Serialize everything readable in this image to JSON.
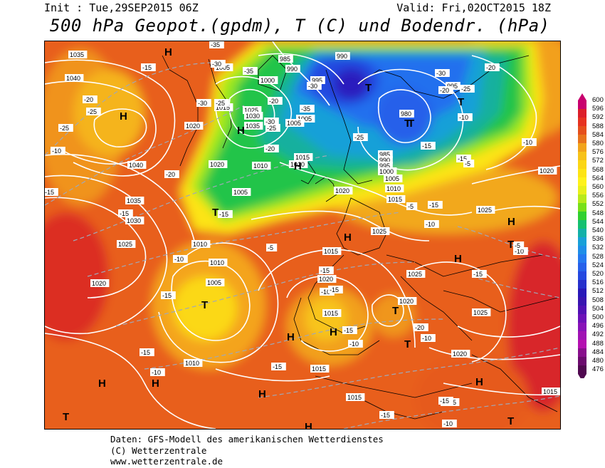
{
  "header": {
    "init": "Init : Tue,29SEP2015 06Z",
    "valid": "Valid: Fri,02OCT2015 18Z",
    "title": "500 hPa Geopot.(gpdm), T (C) und Bodendr. (hPa)"
  },
  "legend": {
    "values": [
      "600",
      "596",
      "592",
      "588",
      "584",
      "580",
      "576",
      "572",
      "568",
      "564",
      "560",
      "556",
      "552",
      "548",
      "544",
      "540",
      "536",
      "532",
      "528",
      "524",
      "520",
      "516",
      "512",
      "508",
      "504",
      "500",
      "496",
      "492",
      "488",
      "484",
      "480",
      "476"
    ],
    "colors": [
      "#c8006e",
      "#dc1e2a",
      "#e63220",
      "#e54f1c",
      "#e8731c",
      "#f2a31a",
      "#f7c218",
      "#fbd614",
      "#fde414",
      "#fef21a",
      "#e8f01a",
      "#b8ea1a",
      "#78e018",
      "#30d02e",
      "#14c070",
      "#12b0a8",
      "#18a0d8",
      "#1e8ee8",
      "#2478f0",
      "#2660ea",
      "#2448e0",
      "#2630cc",
      "#2818b8",
      "#3814b0",
      "#5010b4",
      "#6c10b8",
      "#8812b8",
      "#a012b4",
      "#b410b0",
      "#880e8c",
      "#6c0a6e",
      "#500850"
    ]
  },
  "map": {
    "pressure_labels": [
      "1035",
      "1040",
      "1005",
      "985",
      "990",
      "990",
      "995",
      "1000",
      "1005",
      "995",
      "980",
      "1025",
      "1030",
      "1035",
      "1015",
      "1005",
      "1020",
      "1010",
      "1015",
      "1020",
      "1010",
      "1005",
      "985",
      "990",
      "995",
      "1000",
      "1005",
      "1010",
      "1020",
      "1015",
      "1040",
      "1035",
      "1030",
      "1025",
      "1010",
      "1020",
      "1010",
      "1005",
      "1020",
      "1015",
      "1025",
      "1015",
      "1010",
      "1020",
      "1025",
      "1025",
      "1020",
      "1025",
      "1015",
      "1020",
      "1015",
      "1015",
      "1015"
    ],
    "temperature_labels": [
      "-10",
      "-15",
      "-35",
      "-30",
      "-30",
      "-20",
      "-25",
      "-25",
      "-20",
      "-25",
      "-20",
      "-25",
      "-35",
      "-30",
      "-35",
      "-30",
      "-25",
      "-20",
      "-15",
      "-10",
      "-5",
      "-30",
      "-25",
      "-20",
      "-15",
      "-10",
      "-15",
      "-15",
      "-20",
      "-15",
      "-10",
      "-15",
      "-15",
      "-10",
      "-5",
      "-15",
      "-10",
      "-15",
      "-10",
      "-15",
      "-20",
      "-15",
      "-15",
      "-10",
      "-5",
      "-10",
      "-15",
      "-15",
      "-10",
      "-15",
      "-10",
      "-5"
    ],
    "highs_lows": [
      "H",
      "H",
      "H",
      "T",
      "T",
      "T",
      "H",
      "T",
      "T",
      "H",
      "H",
      "H",
      "T",
      "T",
      "H",
      "H",
      "T",
      "T",
      "H",
      "H",
      "H",
      "T",
      "H",
      "H",
      "T"
    ]
  },
  "footer": {
    "line1": "Daten: GFS-Modell des amerikanischen Wetterdienstes",
    "line2": "(C) Wetterzentrale",
    "line3": "www.wetterzentrale.de"
  }
}
